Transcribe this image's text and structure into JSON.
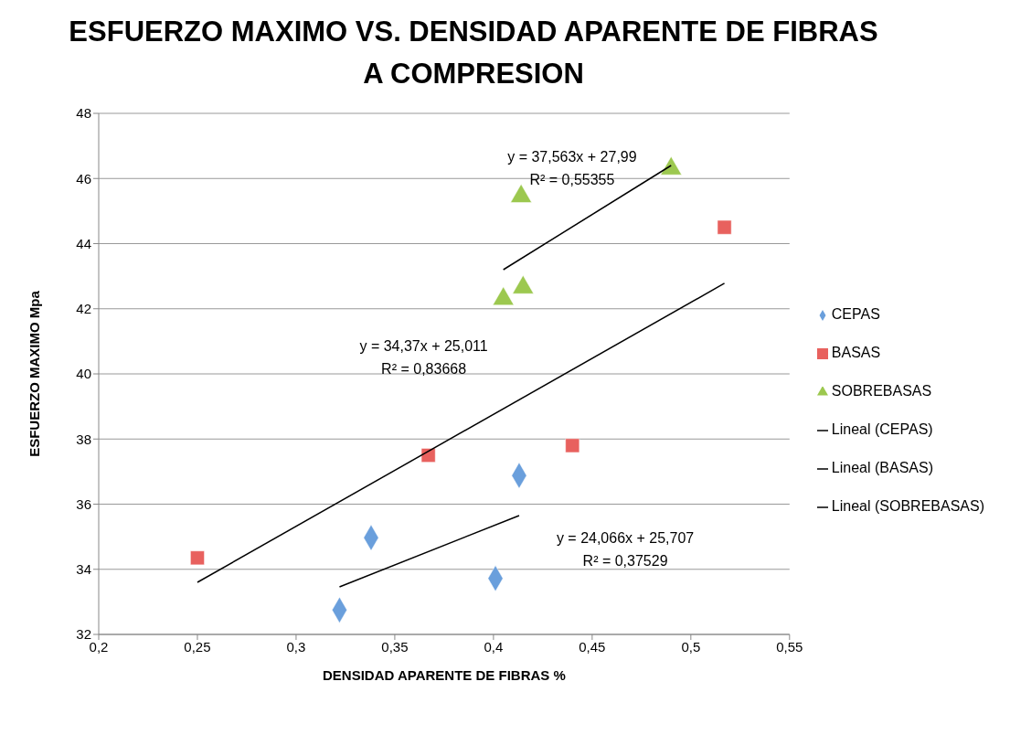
{
  "chart_data": {
    "type": "scatter",
    "title": "ESFUERZO MAXIMO VS. DENSIDAD APARENTE DE FIBRAS A COMPRESION",
    "xlabel": "DENSIDAD APARENTE DE FIBRAS    %",
    "ylabel": "ESFUERZO MAXIMO      Mpa",
    "series": [
      {
        "name": "CEPAS",
        "color": "#6a9fdc",
        "marker": "diamond",
        "x": [
          0.322,
          0.338,
          0.401,
          0.413
        ],
        "values": [
          32.75,
          34.97,
          33.72,
          36.88
        ]
      },
      {
        "name": "BASAS",
        "color": "#e8615e",
        "marker": "square",
        "x": [
          0.25,
          0.367,
          0.44,
          0.517
        ],
        "values": [
          34.35,
          37.5,
          37.8,
          44.5
        ]
      },
      {
        "name": "SOBREBASAS",
        "color": "#9cc84f",
        "marker": "triangle",
        "x": [
          0.405,
          0.414,
          0.415,
          0.49
        ],
        "values": [
          42.3,
          45.45,
          42.65,
          46.3
        ]
      },
      {
        "name": "Lineal (CEPAS)",
        "type": "line",
        "color": "#000000",
        "marker": "none",
        "x": [
          0.322,
          0.413
        ],
        "values": [
          33.46,
          35.65
        ]
      },
      {
        "name": "Lineal (BASAS)",
        "type": "line",
        "color": "#000000",
        "marker": "none",
        "x": [
          0.25,
          0.517
        ],
        "values": [
          33.6,
          42.78
        ]
      },
      {
        "name": "Lineal (SOBREBASAS)",
        "type": "line",
        "color": "#000000",
        "marker": "none",
        "x": [
          0.405,
          0.49
        ],
        "values": [
          43.2,
          46.4
        ]
      }
    ],
    "xlim": [
      0.2,
      0.55
    ],
    "xticks": [
      {
        "value": 0.2,
        "label": "0,2"
      },
      {
        "value": 0.25,
        "label": "0,25"
      },
      {
        "value": 0.3,
        "label": "0,3"
      },
      {
        "value": 0.35,
        "label": "0,35"
      },
      {
        "value": 0.4,
        "label": "0,4"
      },
      {
        "value": 0.45,
        "label": "0,45"
      },
      {
        "value": 0.5,
        "label": "0,5"
      },
      {
        "value": 0.55,
        "label": "0,55"
      }
    ],
    "ylim": [
      32,
      48
    ],
    "yticks": [
      32,
      34,
      36,
      38,
      40,
      42,
      44,
      46,
      48
    ],
    "grid": "y",
    "legend": "right",
    "annotations": [
      "y = 37,563x + 27,99",
      "R² = 0,55355",
      "y = 34,37x + 25,011",
      "R² = 0,83668",
      "y = 24,066x + 25,707",
      "R² = 0,37529"
    ]
  }
}
